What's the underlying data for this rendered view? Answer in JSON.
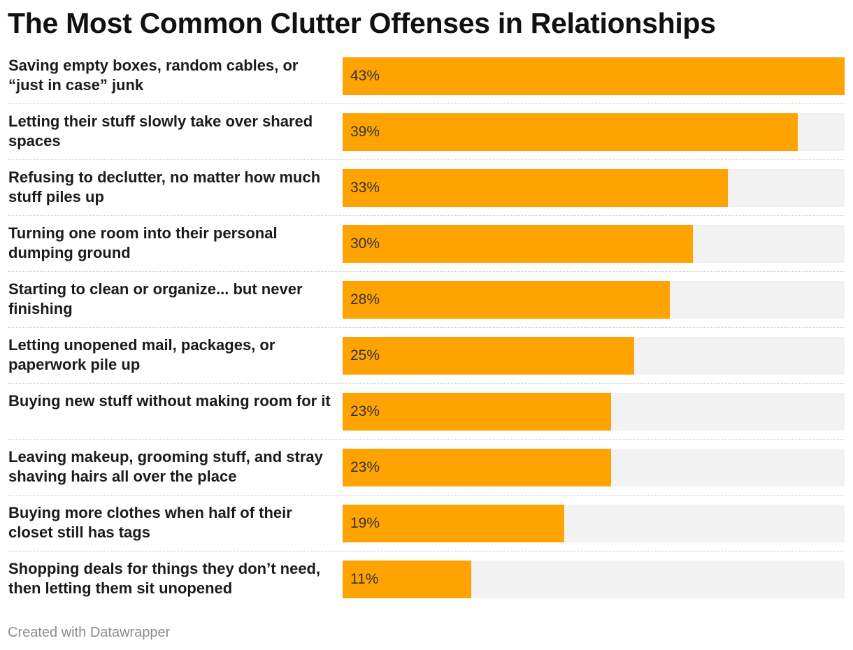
{
  "chart_data": {
    "type": "bar",
    "orientation": "horizontal",
    "title": "The Most Common Clutter Offenses in Relationships",
    "value_suffix": "%",
    "xlim": [
      0,
      43
    ],
    "categories": [
      "Saving empty boxes, random cables, or “just in case” junk",
      "Letting their stuff slowly take over shared spaces",
      "Refusing to declutter, no matter how much stuff piles up",
      "Turning one room into their personal dumping ground",
      "Starting to clean or organize... but never finishing",
      "Letting unopened mail, packages, or paperwork pile up",
      "Buying new stuff without making room for it",
      "Leaving makeup, grooming stuff, and stray shaving hairs all over the place",
      "Buying more clothes when half of their closet still has tags",
      "Shopping deals for things they don’t need, then letting them sit unopened"
    ],
    "values": [
      43,
      39,
      33,
      30,
      28,
      25,
      23,
      23,
      19,
      11
    ],
    "value_labels": [
      "43%",
      "39%",
      "33%",
      "30%",
      "28%",
      "25%",
      "23%",
      "23%",
      "19%",
      "11%"
    ],
    "colors": {
      "bar": "#ffa300",
      "track": "#f2f2f2"
    }
  },
  "footer": {
    "credit": "Created with Datawrapper"
  }
}
